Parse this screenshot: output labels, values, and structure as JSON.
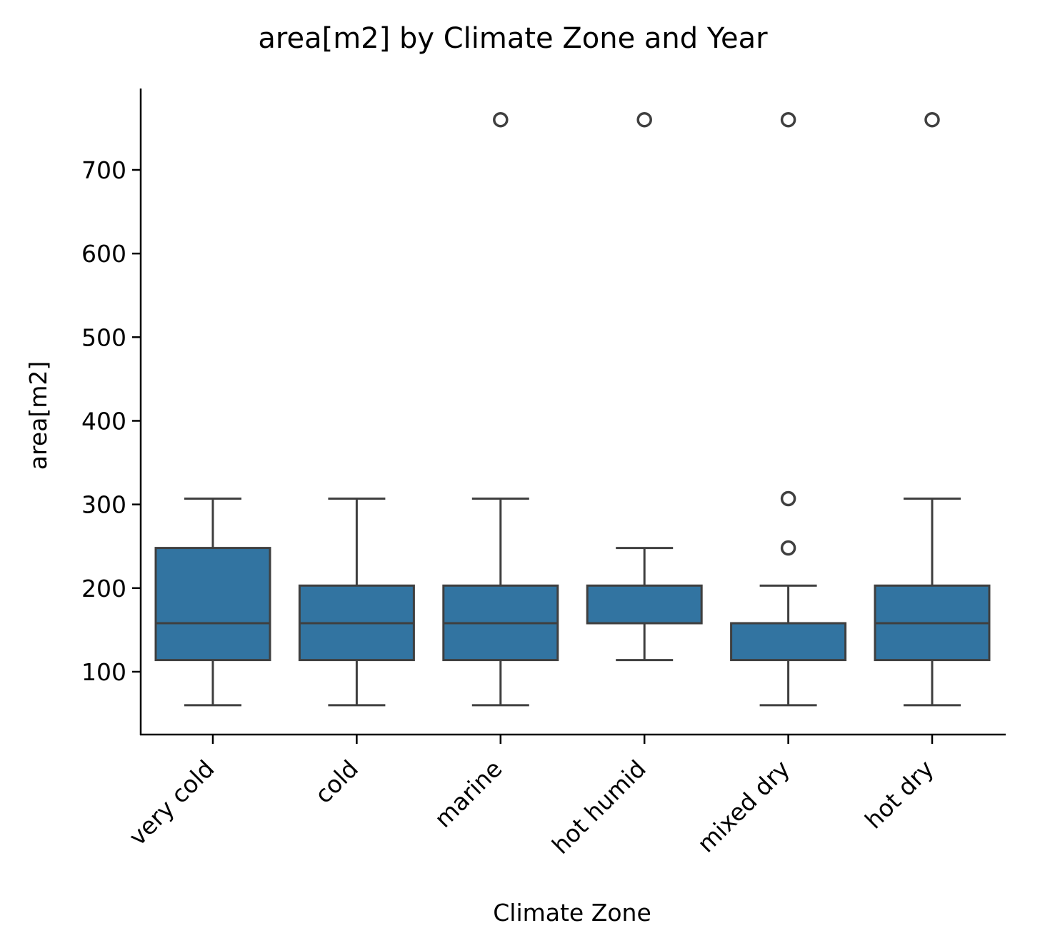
{
  "chart_data": {
    "type": "boxplot",
    "title": "area[m2] by Climate Zone and Year",
    "xlabel": "Climate Zone",
    "ylabel": "area[m2]",
    "categories": [
      "very cold",
      "cold",
      "marine",
      "hot humid",
      "mixed dry",
      "hot dry"
    ],
    "yticks": [
      100,
      200,
      300,
      400,
      500,
      600,
      700
    ],
    "ylim": [
      22,
      795
    ],
    "box_color": "#3274a1",
    "line_color": "#3f3f3f",
    "boxes": [
      {
        "category": "very cold",
        "whisker_low": 60,
        "q1": 114,
        "median": 158,
        "q3": 248,
        "whisker_high": 307,
        "outliers": []
      },
      {
        "category": "cold",
        "whisker_low": 60,
        "q1": 114,
        "median": 158,
        "q3": 203,
        "whisker_high": 307,
        "outliers": []
      },
      {
        "category": "marine",
        "whisker_low": 60,
        "q1": 114,
        "median": 158,
        "q3": 203,
        "whisker_high": 307,
        "outliers": [
          760
        ]
      },
      {
        "category": "hot humid",
        "whisker_low": 114,
        "q1": 158,
        "median": 158,
        "q3": 203,
        "whisker_high": 248,
        "outliers": [
          760
        ]
      },
      {
        "category": "mixed dry",
        "whisker_low": 60,
        "q1": 114,
        "median": 158,
        "q3": 158,
        "whisker_high": 203,
        "outliers": [
          248,
          307,
          760
        ]
      },
      {
        "category": "hot dry",
        "whisker_low": 60,
        "q1": 114,
        "median": 158,
        "q3": 203,
        "whisker_high": 307,
        "outliers": [
          760
        ]
      }
    ]
  }
}
